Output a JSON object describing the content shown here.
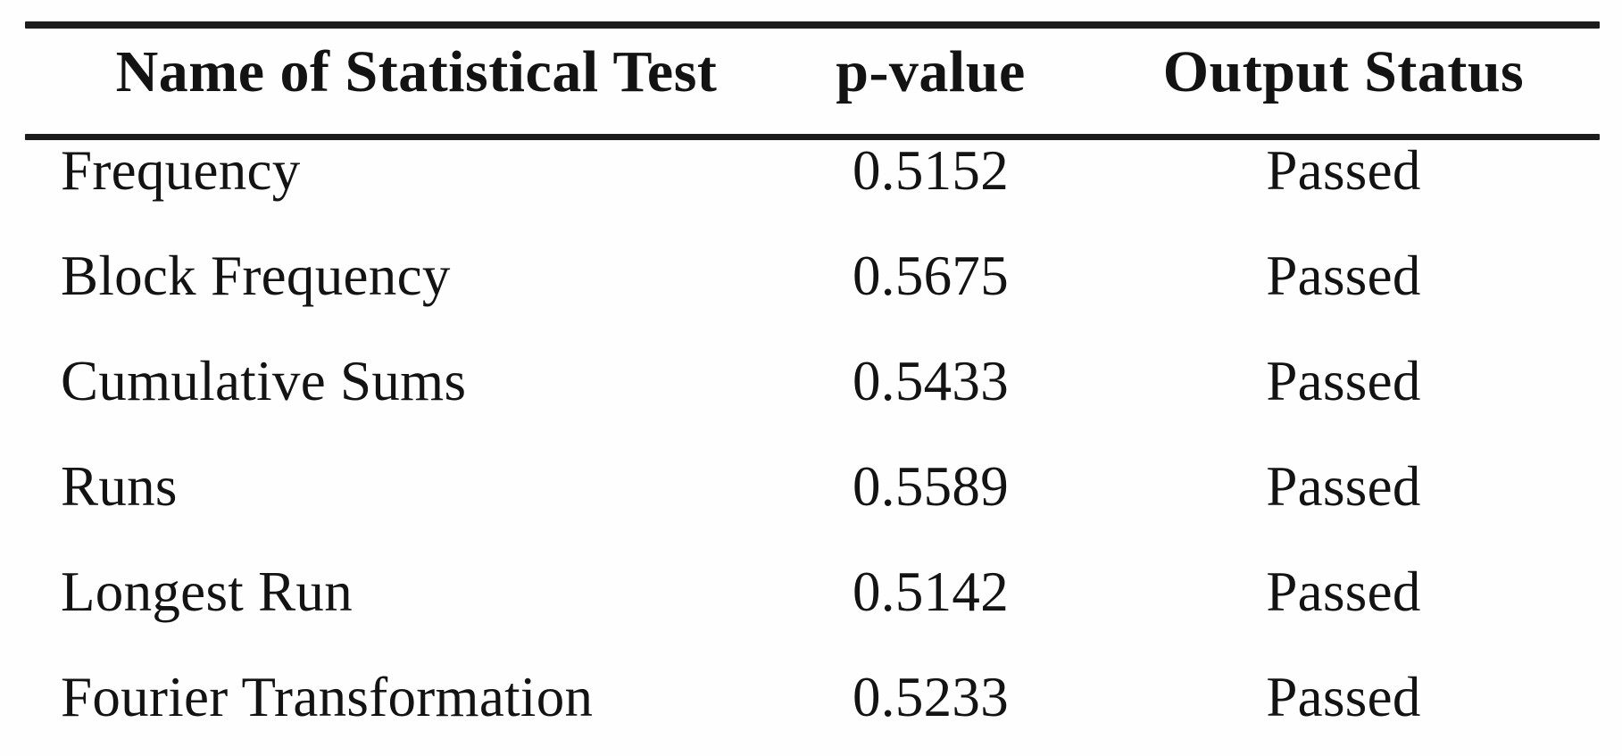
{
  "table": {
    "columns": {
      "name": "Name of Statistical Test",
      "p_value": "p-value",
      "status": "Output Status"
    },
    "rows": [
      {
        "name": "Frequency",
        "p_value": "0.5152",
        "status": "Passed"
      },
      {
        "name": "Block Frequency",
        "p_value": "0.5675",
        "status": "Passed"
      },
      {
        "name": "Cumulative Sums",
        "p_value": "0.5433",
        "status": "Passed"
      },
      {
        "name": "Runs",
        "p_value": "0.5589",
        "status": "Passed"
      },
      {
        "name": "Longest Run",
        "p_value": "0.5142",
        "status": "Passed"
      },
      {
        "name": "Fourier Transformation",
        "p_value": "0.5233",
        "status": "Passed"
      }
    ]
  },
  "colors": {
    "rule": "#1c1c1c",
    "text": "#131313",
    "background": "#fefefe"
  },
  "chart_data": {
    "type": "table",
    "title": "",
    "columns": [
      "Name of Statistical Test",
      "p-value",
      "Output Status"
    ],
    "rows": [
      [
        "Frequency",
        0.5152,
        "Passed"
      ],
      [
        "Block Frequency",
        0.5675,
        "Passed"
      ],
      [
        "Cumulative Sums",
        0.5433,
        "Passed"
      ],
      [
        "Runs",
        0.5589,
        "Passed"
      ],
      [
        "Longest Run",
        0.5142,
        "Passed"
      ],
      [
        "Fourier Transformation",
        0.5233,
        "Passed"
      ]
    ]
  }
}
